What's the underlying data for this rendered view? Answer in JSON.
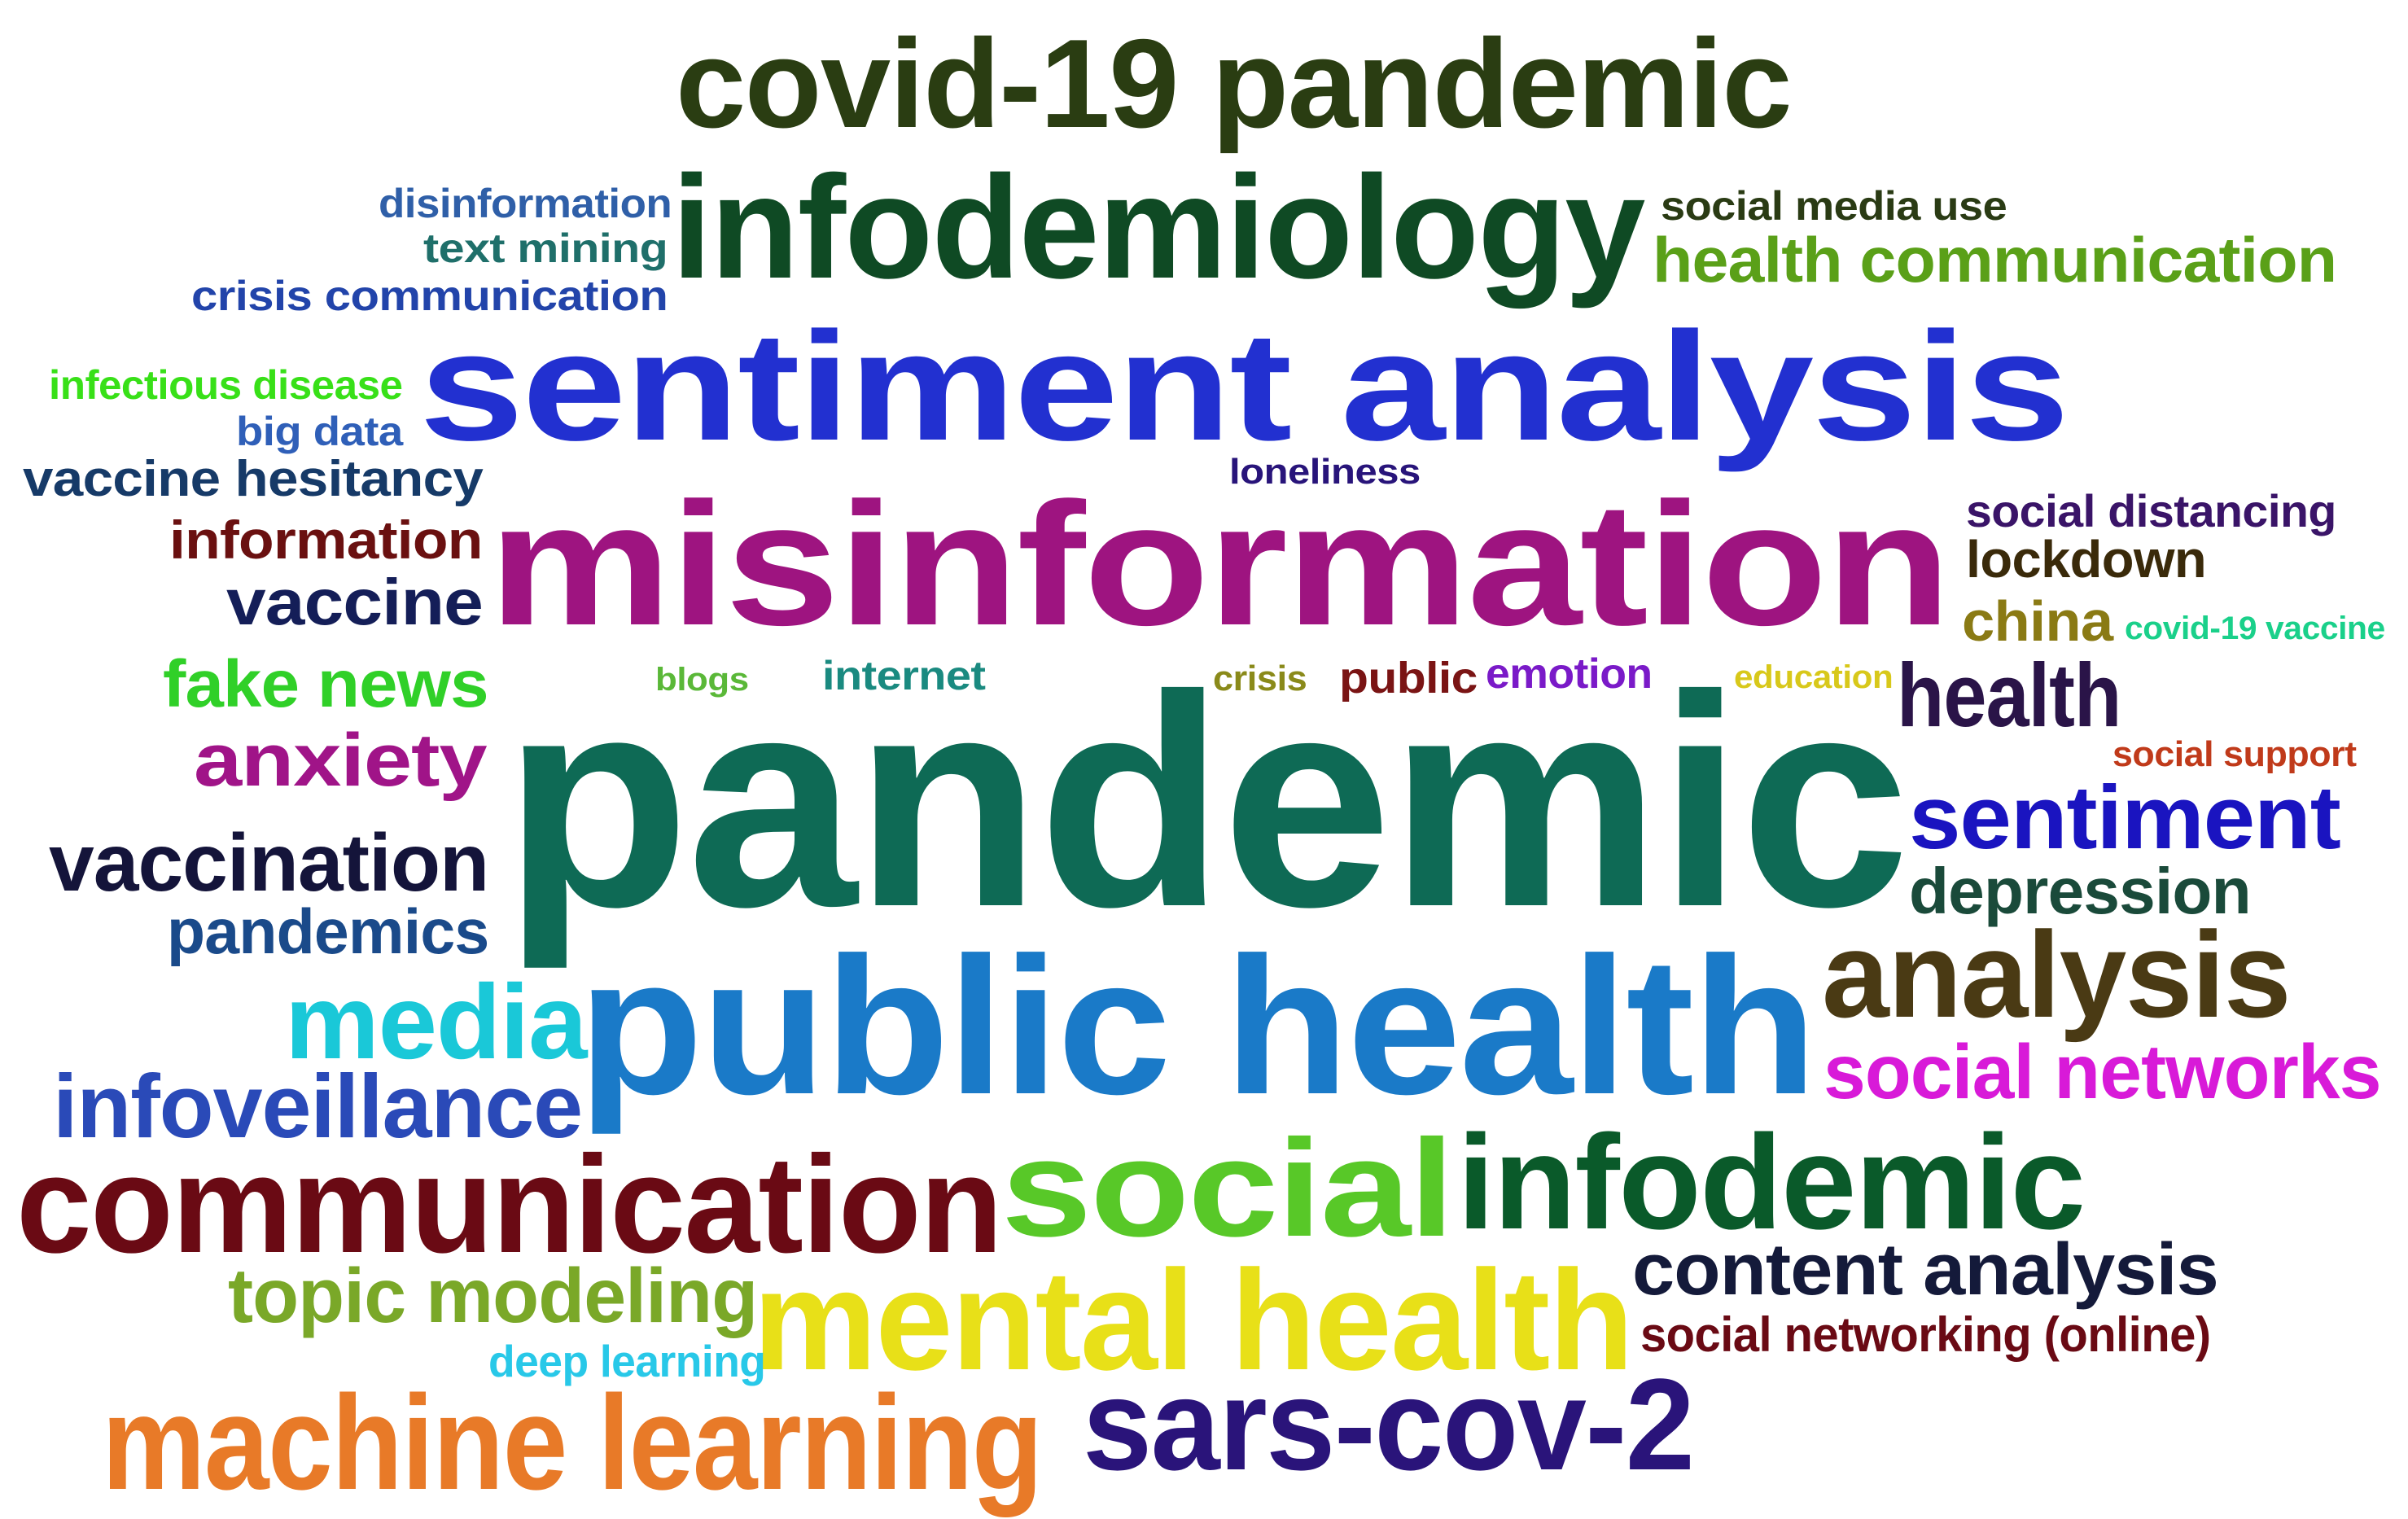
{
  "words": [
    {
      "text": "covid-19 pandemic",
      "color": "#2a3d12"
    },
    {
      "text": "infodemiology",
      "color": "#0f4a24"
    },
    {
      "text": "disinformation",
      "color": "#2f5fa8"
    },
    {
      "text": "text mining",
      "color": "#1f6f6a"
    },
    {
      "text": "crisis communication",
      "color": "#2244aa"
    },
    {
      "text": "social media use",
      "color": "#2a3b14"
    },
    {
      "text": "health communication",
      "color": "#5aa018"
    },
    {
      "text": "sentiment analysis",
      "color": "#2230d0"
    },
    {
      "text": "infectious disease",
      "color": "#38e018"
    },
    {
      "text": "big data",
      "color": "#2f5fb8"
    },
    {
      "text": "vaccine hesitancy",
      "color": "#163a68"
    },
    {
      "text": "loneliness",
      "color": "#28147a"
    },
    {
      "text": "misinformation",
      "color": "#9e1480"
    },
    {
      "text": "social distancing",
      "color": "#3a1468"
    },
    {
      "text": "information",
      "color": "#6a1010"
    },
    {
      "text": "lockdown",
      "color": "#3a2a0a"
    },
    {
      "text": "vaccine",
      "color": "#141e58"
    },
    {
      "text": "china",
      "color": "#8a7a14"
    },
    {
      "text": "covid-19 vaccine",
      "color": "#1ad08a"
    },
    {
      "text": "fake news",
      "color": "#30d028"
    },
    {
      "text": "blogs",
      "color": "#5ab838"
    },
    {
      "text": "internet",
      "color": "#1a8a80"
    },
    {
      "text": "crisis",
      "color": "#8a8a1a"
    },
    {
      "text": "public",
      "color": "#7a1414"
    },
    {
      "text": "emotion",
      "color": "#7a1ac8"
    },
    {
      "text": "education",
      "color": "#d8c81a"
    },
    {
      "text": "health",
      "color": "#2a1448"
    },
    {
      "text": "anxiety",
      "color": "#a01488"
    },
    {
      "text": "pandemic",
      "color": "#0e6a55"
    },
    {
      "text": "social support",
      "color": "#c03a1a"
    },
    {
      "text": "vaccination",
      "color": "#14143a"
    },
    {
      "text": "sentiment",
      "color": "#1a14c0"
    },
    {
      "text": "depression",
      "color": "#1a4a3a"
    },
    {
      "text": "pandemics",
      "color": "#1a4a8a"
    },
    {
      "text": "media",
      "color": "#1ac8d8"
    },
    {
      "text": "public health",
      "color": "#1a7ac8"
    },
    {
      "text": "analysis",
      "color": "#4a3a14"
    },
    {
      "text": "social networks",
      "color": "#d81ad8"
    },
    {
      "text": "infoveillance",
      "color": "#2a4ab8"
    },
    {
      "text": "communication",
      "color": "#6a0a14"
    },
    {
      "text": "social",
      "color": "#58c828"
    },
    {
      "text": "infodemic",
      "color": "#0a5a2a"
    },
    {
      "text": "topic modeling",
      "color": "#7aa828"
    },
    {
      "text": "content analysis",
      "color": "#141a3a"
    },
    {
      "text": "mental health",
      "color": "#e8e018"
    },
    {
      "text": "social networking (online)",
      "color": "#6a0a14"
    },
    {
      "text": "deep learning",
      "color": "#28c8e8"
    },
    {
      "text": "machine learning",
      "color": "#e87a28"
    },
    {
      "text": "sars-cov-2",
      "color": "#2a147a"
    }
  ]
}
